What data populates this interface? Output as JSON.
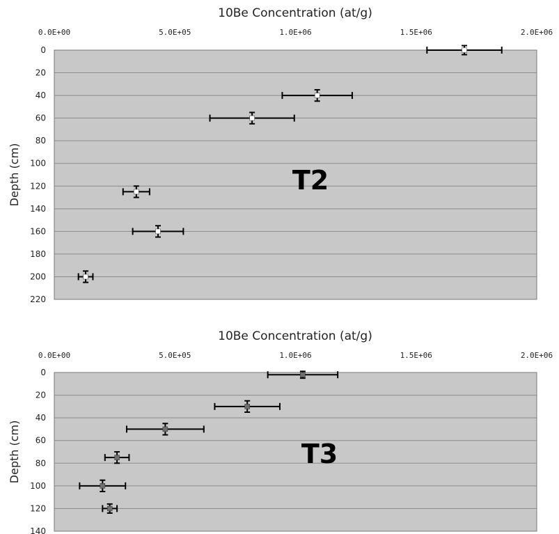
{
  "chart_data": [
    {
      "type": "scatter",
      "title": "10Be Concentration (at/g)",
      "ylabel": "Depth (cm)",
      "annotation": "T2",
      "xlim": [
        0,
        2000000
      ],
      "ylim": [
        0,
        220
      ],
      "y_inverted": true,
      "x_axis_position": "top",
      "x_ticks": [
        "0.0E+00",
        "5.0E+05",
        "1.0E+06",
        "1.5E+06",
        "2.0E+06"
      ],
      "x_tick_values": [
        0,
        500000,
        1000000,
        1500000,
        2000000
      ],
      "y_ticks": [
        "0",
        "20",
        "40",
        "60",
        "80",
        "100",
        "120",
        "140",
        "160",
        "180",
        "200",
        "220"
      ],
      "y_tick_values": [
        0,
        20,
        40,
        60,
        80,
        100,
        120,
        140,
        160,
        180,
        200,
        220
      ],
      "grid": "horizontal",
      "plot_background": "#c8c8c8",
      "marker_color": "#ffffff",
      "error_bar_color": "#000000",
      "points": [
        {
          "x": 1700000,
          "y": 0,
          "x_err": 155000,
          "y_err": 4
        },
        {
          "x": 1090000,
          "y": 40,
          "x_err": 145000,
          "y_err": 5
        },
        {
          "x": 820000,
          "y": 60,
          "x_err": 175000,
          "y_err": 5
        },
        {
          "x": 340000,
          "y": 125,
          "x_err": 55000,
          "y_err": 5
        },
        {
          "x": 430000,
          "y": 160,
          "x_err": 105000,
          "y_err": 5
        },
        {
          "x": 130000,
          "y": 200,
          "x_err": 30000,
          "y_err": 5
        }
      ]
    },
    {
      "type": "scatter",
      "title": "10Be Concentration (at/g)",
      "ylabel": "Depth (cm)",
      "annotation": "T3",
      "xlim": [
        0,
        2000000
      ],
      "ylim": [
        0,
        140
      ],
      "y_inverted": true,
      "x_axis_position": "top",
      "x_ticks": [
        "0.0E+00",
        "5.0E+05",
        "1.0E+06",
        "1.5E+06",
        "2.0E+06"
      ],
      "x_tick_values": [
        0,
        500000,
        1000000,
        1500000,
        2000000
      ],
      "y_ticks": [
        "0",
        "20",
        "40",
        "60",
        "80",
        "100",
        "120",
        "140"
      ],
      "y_tick_values": [
        0,
        20,
        40,
        60,
        80,
        100,
        120,
        140
      ],
      "grid": "horizontal",
      "plot_background": "#c8c8c8",
      "marker_color": "#6e6e6e",
      "error_bar_color": "#000000",
      "points": [
        {
          "x": 1030000,
          "y": 2,
          "x_err": 145000,
          "y_err": 3
        },
        {
          "x": 800000,
          "y": 30,
          "x_err": 135000,
          "y_err": 5
        },
        {
          "x": 460000,
          "y": 50,
          "x_err": 160000,
          "y_err": 5
        },
        {
          "x": 260000,
          "y": 75,
          "x_err": 50000,
          "y_err": 5
        },
        {
          "x": 200000,
          "y": 100,
          "x_err": 95000,
          "y_err": 5
        },
        {
          "x": 230000,
          "y": 120,
          "x_err": 30000,
          "y_err": 4
        }
      ]
    }
  ]
}
